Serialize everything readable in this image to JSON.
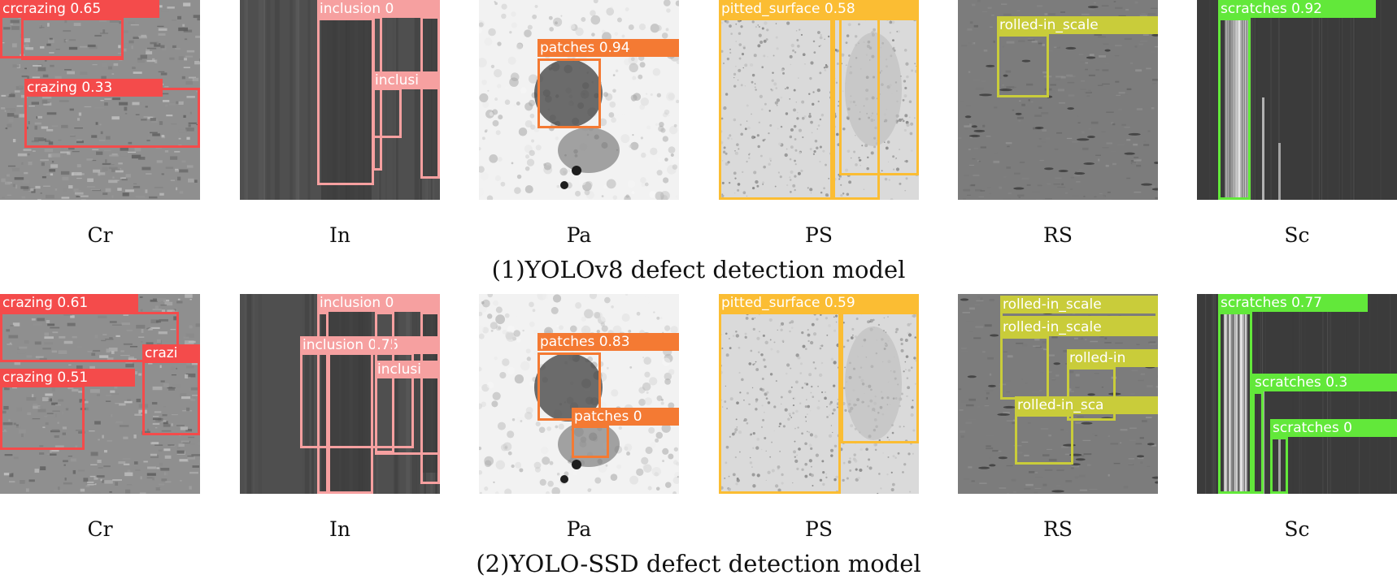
{
  "rows": [
    {
      "caption": "(1)YOLOv8 defect detection model",
      "panels": [
        {
          "caption": "Cr",
          "texture": "crazing",
          "color": "#f44b4b",
          "detections": [
            {
              "label": "crcrazing 0.65",
              "x": 0,
              "y": 0,
              "w": 152,
              "h": 72,
              "tx": 0,
              "ty": 0,
              "tw": 196
            },
            {
              "label": "",
              "x": 26,
              "y": 22,
              "w": 126,
              "h": 52,
              "tx": 0,
              "ty": 0,
              "tw": 0
            },
            {
              "label": "crazing 0.33",
              "x": 30,
              "y": 108,
              "w": 216,
              "h": 74,
              "tx": 30,
              "ty": 97,
              "tw": 170
            }
          ]
        },
        {
          "caption": "In",
          "texture": "inclusion",
          "color": "#f6a0a0",
          "detections": [
            {
              "label": "inclusion 0",
              "x": 95,
              "y": 22,
              "w": 70,
              "h": 206,
              "tx": 95,
              "ty": 0,
              "tw": 151
            },
            {
              "label": "",
              "x": 163,
              "y": 20,
              "w": 12,
              "h": 190,
              "tx": 0,
              "ty": 0,
              "tw": 0
            },
            {
              "label": "inclusi",
              "x": 163,
              "y": 108,
              "w": 36,
              "h": 62,
              "tx": 163,
              "ty": 88,
              "tw": 83
            },
            {
              "label": "",
              "x": 222,
              "y": 20,
              "w": 24,
              "h": 200,
              "tx": 0,
              "ty": 0,
              "tw": 0
            }
          ]
        },
        {
          "caption": "Pa",
          "texture": "patches",
          "color": "#f47a33",
          "detections": [
            {
              "label": "patches 0.94",
              "x": 72,
              "y": 72,
              "w": 78,
              "h": 86,
              "tx": 72,
              "ty": 48,
              "tw": 174
            }
          ]
        },
        {
          "caption": "PS",
          "texture": "pitted",
          "color": "#fbbd33",
          "detections": [
            {
              "label": "pitted_surface 0.58",
              "x": 0,
              "y": 22,
              "w": 140,
              "h": 224,
              "tx": 0,
              "ty": 0,
              "tw": 246
            },
            {
              "label": "",
              "x": 140,
              "y": 22,
              "w": 58,
              "h": 224,
              "tx": 0,
              "ty": 0,
              "tw": 0
            },
            {
              "label": "",
              "x": 148,
              "y": 22,
              "w": 98,
              "h": 194,
              "tx": 0,
              "ty": 0,
              "tw": 0
            }
          ]
        },
        {
          "caption": "RS",
          "texture": "rolled",
          "color": "#c9cc3a",
          "detections": [
            {
              "label": "rolled-in_scale",
              "x": 48,
              "y": 42,
              "w": 64,
              "h": 78,
              "tx": 48,
              "ty": 20,
              "tw": 198
            }
          ]
        },
        {
          "caption": "Sc",
          "texture": "scratches",
          "color": "#62e83a",
          "detections": [
            {
              "label": "scratches 0.92",
              "x": 26,
              "y": 22,
              "w": 40,
              "h": 224,
              "tx": 26,
              "ty": 0,
              "tw": 194
            }
          ]
        }
      ]
    },
    {
      "caption": "(2)YOLO-SSD defect detection model",
      "panels": [
        {
          "caption": "Cr",
          "texture": "crazing",
          "color": "#f44b4b",
          "detections": [
            {
              "label": "crazing 0.61",
              "x": 0,
              "y": 22,
              "w": 220,
              "h": 62,
              "tx": 0,
              "ty": 0,
              "tw": 170
            },
            {
              "label": "crazi",
              "x": 175,
              "y": 82,
              "w": 71,
              "h": 92,
              "tx": 175,
              "ty": 62,
              "tw": 71
            },
            {
              "label": "crazing 0.51",
              "x": 0,
              "y": 112,
              "w": 104,
              "h": 80,
              "tx": 0,
              "ty": 92,
              "tw": 166
            }
          ]
        },
        {
          "caption": "In",
          "texture": "inclusion",
          "color": "#f6a0a0",
          "detections": [
            {
              "label": "inclusion 0",
              "x": 95,
              "y": 22,
              "w": 14,
              "h": 224,
              "tx": 95,
              "ty": 0,
              "tw": 151
            },
            {
              "label": "inclusion 0.75",
              "x": 74,
              "y": 72,
              "w": 140,
              "h": 118,
              "tx": 74,
              "ty": 52,
              "tw": 172
            },
            {
              "label": "",
              "x": 108,
              "y": 72,
              "w": 56,
              "h": 174,
              "tx": 0,
              "ty": 0,
              "tw": 0
            },
            {
              "label": "",
              "x": 166,
              "y": 22,
              "w": 24,
              "h": 174,
              "tx": 0,
              "ty": 0,
              "tw": 0
            },
            {
              "label": "inclusi",
              "x": 166,
              "y": 100,
              "w": 80,
              "h": 98,
              "tx": 166,
              "ty": 82,
              "tw": 80
            },
            {
              "label": "",
              "x": 222,
              "y": 22,
              "w": 24,
              "h": 212,
              "tx": 0,
              "ty": 0,
              "tw": 0
            }
          ]
        },
        {
          "caption": "Pa",
          "texture": "patches",
          "color": "#f47a33",
          "detections": [
            {
              "label": "patches 0.83",
              "x": 72,
              "y": 72,
              "w": 78,
              "h": 84,
              "tx": 72,
              "ty": 48,
              "tw": 174
            },
            {
              "label": "patches 0",
              "x": 114,
              "y": 162,
              "w": 46,
              "h": 40,
              "tx": 114,
              "ty": 140,
              "tw": 132
            }
          ]
        },
        {
          "caption": "PS",
          "texture": "pitted",
          "color": "#fbbd33",
          "detections": [
            {
              "label": "pitted_surface 0.59",
              "x": 0,
              "y": 22,
              "w": 150,
              "h": 224,
              "tx": 0,
              "ty": 0,
              "tw": 246
            },
            {
              "label": "",
              "x": 150,
              "y": 22,
              "w": 96,
              "h": 162,
              "tx": 0,
              "ty": 0,
              "tw": 0
            }
          ]
        },
        {
          "caption": "RS",
          "texture": "rolled",
          "color": "#c9cc3a",
          "detections": [
            {
              "label": "rolled-in_scale",
              "x": 52,
              "y": 20,
              "w": 194,
              "h": 10,
              "tx": 52,
              "ty": 2,
              "tw": 194
            },
            {
              "label": "rolled-in_scale",
              "x": 52,
              "y": 52,
              "w": 60,
              "h": 78,
              "tx": 52,
              "ty": 30,
              "tw": 194
            },
            {
              "label": "rolled-in",
              "x": 134,
              "y": 90,
              "w": 60,
              "h": 66,
              "tx": 134,
              "ty": 68,
              "tw": 112
            },
            {
              "label": "rolled-in_sca",
              "x": 70,
              "y": 148,
              "w": 72,
              "h": 62,
              "tx": 70,
              "ty": 126,
              "tw": 176
            }
          ]
        },
        {
          "caption": "Sc",
          "texture": "scratches",
          "color": "#62e83a",
          "detections": [
            {
              "label": "scratches 0.77",
              "x": 26,
              "y": 22,
              "w": 42,
              "h": 224,
              "tx": 26,
              "ty": 0,
              "tw": 184
            },
            {
              "label": "scratches 0.3",
              "x": 68,
              "y": 120,
              "w": 14,
              "h": 126,
              "tx": 68,
              "ty": 98,
              "tw": 178
            },
            {
              "label": "scratches 0",
              "x": 90,
              "y": 176,
              "w": 22,
              "h": 70,
              "tx": 90,
              "ty": 154,
              "tw": 156
            }
          ]
        }
      ]
    }
  ]
}
